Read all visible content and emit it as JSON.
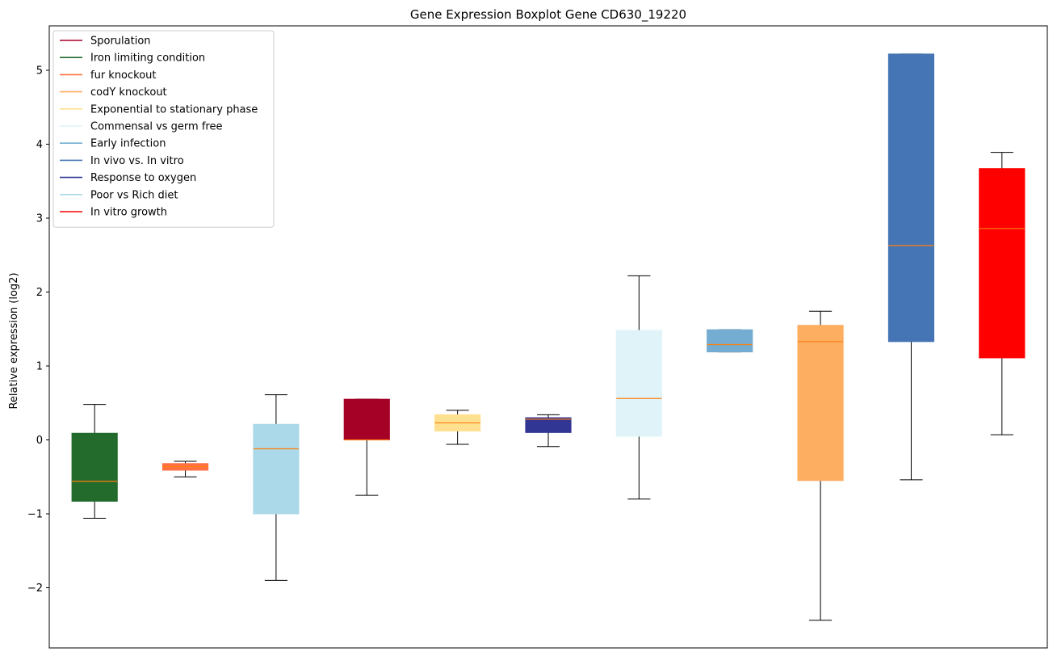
{
  "chart_data": {
    "type": "box",
    "title": "Gene Expression Boxplot Gene CD630_19220",
    "xlabel": "",
    "ylabel": "Relative expression (log2)",
    "ylim": [
      -2.8,
      5.6
    ],
    "yticks": [
      -2,
      -1,
      0,
      1,
      2,
      3,
      4,
      5
    ],
    "ytick_labels": [
      "−2",
      "−1",
      "0",
      "1",
      "2",
      "3",
      "4",
      "5"
    ],
    "grid": false,
    "legend_position": "top-left",
    "median_color": "#ff7f0e",
    "series": [
      {
        "name": "Sporulation",
        "color": "#a50026",
        "legend_line_color": "#a50026"
      },
      {
        "name": "Iron limiting condition",
        "color": "#226b2d",
        "legend_line_color": "#226b2d"
      },
      {
        "name": "fur knockout",
        "color": "#ff7043",
        "legend_line_color": "#ff7043"
      },
      {
        "name": "codY knockout",
        "color": "#fdae61",
        "legend_line_color": "#fdae61"
      },
      {
        "name": "Exponential to stationary phase",
        "color": "#fee090",
        "legend_line_color": "#fee090"
      },
      {
        "name": "Commensal vs germ free",
        "color": "#e0f3f8",
        "legend_line_color": "#e0f3f8"
      },
      {
        "name": "Early infection",
        "color": "#74add1",
        "legend_line_color": "#74add1"
      },
      {
        "name": "In vivo vs. In vitro",
        "color": "#4575b4",
        "legend_line_color": "#4575b4"
      },
      {
        "name": "Response to oxygen",
        "color": "#313695",
        "legend_line_color": "#313695"
      },
      {
        "name": "Poor vs Rich diet",
        "color": "#abd9e9",
        "legend_line_color": "#abd9e9"
      },
      {
        "name": "In vitro growth",
        "color": "#ff0000",
        "legend_line_color": "#ff0000"
      }
    ],
    "boxes": [
      {
        "group": "Iron limiting condition",
        "color": "#226b2d",
        "whislo": -1.06,
        "q1": -0.83,
        "med": -0.56,
        "q3": 0.09,
        "whishi": 0.48
      },
      {
        "group": "fur knockout",
        "color": "#ff7043",
        "whislo": -0.5,
        "q1": -0.41,
        "med": -0.36,
        "q3": -0.32,
        "whishi": -0.29
      },
      {
        "group": "Poor vs Rich diet",
        "color": "#abd9e9",
        "whislo": -1.9,
        "q1": -1.0,
        "med": -0.12,
        "q3": 0.21,
        "whishi": 0.61
      },
      {
        "group": "Sporulation",
        "color": "#a50026",
        "whislo": -0.75,
        "q1": 0.0,
        "med": 0.0,
        "q3": 0.55,
        "whishi": 0.55
      },
      {
        "group": "Exponential to stationary phase",
        "color": "#fee090",
        "whislo": -0.06,
        "q1": 0.12,
        "med": 0.23,
        "q3": 0.34,
        "whishi": 0.4
      },
      {
        "group": "Response to oxygen",
        "color": "#313695",
        "whislo": -0.09,
        "q1": 0.1,
        "med": 0.28,
        "q3": 0.3,
        "whishi": 0.34
      },
      {
        "group": "Commensal vs germ free",
        "color": "#e0f3f8",
        "whislo": -0.8,
        "q1": 0.05,
        "med": 0.56,
        "q3": 1.48,
        "whishi": 2.22
      },
      {
        "group": "Early infection",
        "color": "#74add1",
        "whislo": 1.19,
        "q1": 1.19,
        "med": 1.29,
        "q3": 1.49,
        "whishi": 1.49
      },
      {
        "group": "codY knockout",
        "color": "#fdae61",
        "whislo": -2.44,
        "q1": -0.55,
        "med": 1.33,
        "q3": 1.55,
        "whishi": 1.74
      },
      {
        "group": "In vivo vs. In vitro",
        "color": "#4575b4",
        "whislo": -0.54,
        "q1": 1.33,
        "med": 2.63,
        "q3": 5.22,
        "whishi": 5.22
      },
      {
        "group": "In vitro growth",
        "color": "#ff0000",
        "whislo": 0.07,
        "q1": 1.11,
        "med": 2.86,
        "q3": 3.67,
        "whishi": 3.89
      }
    ]
  }
}
